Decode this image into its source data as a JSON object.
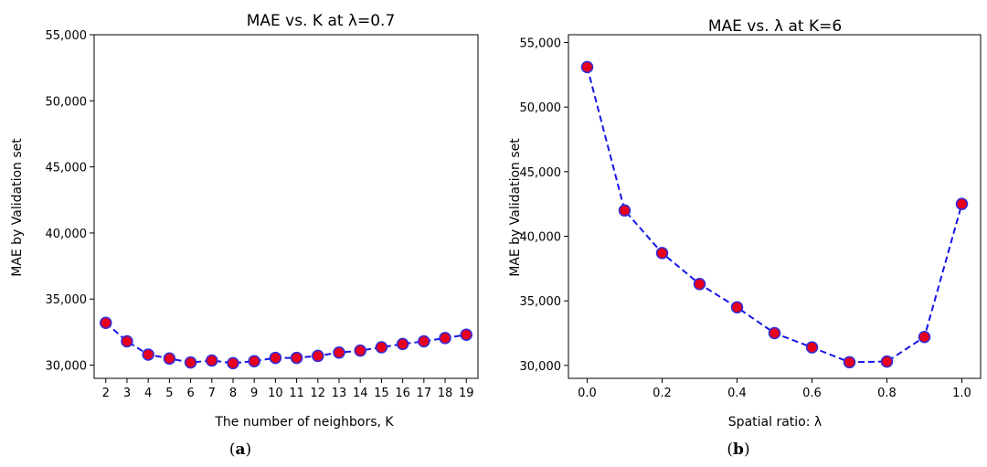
{
  "chart_data": [
    {
      "type": "line",
      "panel": "a",
      "title": "MAE vs. K at λ=0.7",
      "xlabel": "The number of neighbors, K",
      "ylabel": "MAE by Validation set",
      "caption": "(a)",
      "x": [
        2,
        3,
        4,
        5,
        6,
        7,
        8,
        9,
        10,
        11,
        12,
        13,
        14,
        15,
        16,
        17,
        18,
        19
      ],
      "series": [
        {
          "values": [
            33200,
            31800,
            30800,
            30500,
            30200,
            30350,
            30150,
            30300,
            30550,
            30550,
            30700,
            30950,
            31100,
            31350,
            31600,
            31800,
            32050,
            32300
          ]
        }
      ],
      "xlim": [
        1.45,
        19.55
      ],
      "ylim": [
        29000,
        55000
      ],
      "xticks": [
        2,
        3,
        4,
        5,
        6,
        7,
        8,
        9,
        10,
        11,
        12,
        13,
        14,
        15,
        16,
        17,
        18,
        19
      ],
      "xtick_labels": [
        "2",
        "3",
        "4",
        "5",
        "6",
        "7",
        "8",
        "9",
        "10",
        "11",
        "12",
        "13",
        "14",
        "15",
        "16",
        "17",
        "18",
        "19"
      ],
      "yticks": [
        30000,
        35000,
        40000,
        45000,
        50000,
        55000
      ],
      "ytick_labels": [
        "30,000",
        "35,000",
        "40,000",
        "45,000",
        "50,000",
        "55,000"
      ],
      "grid": false,
      "colors": {
        "line": "#1515e6",
        "marker_fill": "#e6001e",
        "marker_edge": "#2d2de0"
      }
    },
    {
      "type": "line",
      "panel": "b",
      "title": "MAE vs. λ at K=6",
      "xlabel": "Spatial ratio: λ",
      "ylabel": "MAE by Validation set",
      "caption": "(b)",
      "x": [
        0.0,
        0.1,
        0.2,
        0.3,
        0.4,
        0.5,
        0.6,
        0.7,
        0.8,
        0.9,
        1.0
      ],
      "series": [
        {
          "values": [
            53100,
            42000,
            38700,
            36300,
            34500,
            32500,
            31400,
            30250,
            30300,
            32200,
            42500
          ]
        }
      ],
      "xlim": [
        -0.05,
        1.05
      ],
      "ylim": [
        29000,
        55600
      ],
      "xticks": [
        0.0,
        0.2,
        0.4,
        0.6,
        0.8,
        1.0
      ],
      "xtick_labels": [
        "0.0",
        "0.2",
        "0.4",
        "0.6",
        "0.8",
        "1.0"
      ],
      "yticks": [
        30000,
        35000,
        40000,
        45000,
        50000,
        55000
      ],
      "ytick_labels": [
        "30,000",
        "35,000",
        "40,000",
        "45,000",
        "50,000",
        "55,000"
      ],
      "grid": false,
      "colors": {
        "line": "#1515e6",
        "marker_fill": "#e6001e",
        "marker_edge": "#2d2de0"
      }
    }
  ]
}
